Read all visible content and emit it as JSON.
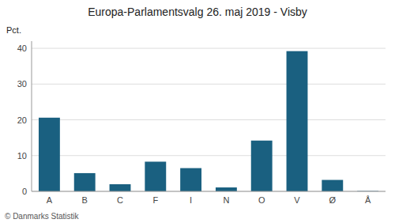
{
  "chart_data": {
    "type": "bar",
    "title": "Europa-Parlamentsvalg 26. maj 2019 - Visby",
    "categories": [
      "A",
      "B",
      "C",
      "F",
      "I",
      "N",
      "O",
      "V",
      "Ø",
      "Å"
    ],
    "values": [
      20.6,
      5.1,
      2.0,
      8.3,
      6.5,
      1.1,
      14.2,
      39.2,
      3.2,
      0.1
    ],
    "color": "#1a6080",
    "ylim": [
      0,
      42
    ],
    "yticks": [
      0,
      10,
      20,
      30,
      40
    ],
    "grid": true,
    "y_label": "Pct.",
    "footer": "© Danmarks Statistik"
  }
}
